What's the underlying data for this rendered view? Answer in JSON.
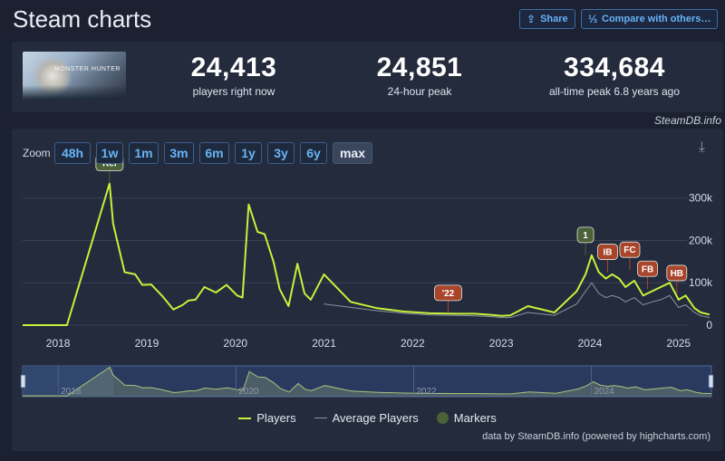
{
  "header": {
    "title": "Steam charts",
    "share_label": "Share",
    "compare_label": "Compare with others…",
    "share_icon": "share-icon",
    "compare_icon": "compare-icon"
  },
  "stats": {
    "game_image": "game-thumbnail",
    "current": {
      "value": "24,413",
      "label": "players right now"
    },
    "peak24": {
      "value": "24,851",
      "label": "24-hour peak"
    },
    "alltime": {
      "value": "334,684",
      "label": "all-time peak 6.8 years ago"
    }
  },
  "credit": "SteamDB.info",
  "zoom": {
    "label": "Zoom",
    "buttons": [
      "48h",
      "1w",
      "1m",
      "3m",
      "6m",
      "1y",
      "3y",
      "6y",
      "max"
    ],
    "active": "max"
  },
  "download_icon": "download-icon",
  "legend": {
    "players": "Players",
    "average": "Average Players",
    "markers": "Markers"
  },
  "footnote": "data by SteamDB.info (powered by highcharts.com)",
  "chart_data": {
    "type": "line",
    "xlim": [
      2017.6,
      2025.35
    ],
    "ylim": [
      0,
      340000
    ],
    "x_ticks": [
      "2018",
      "2019",
      "2020",
      "2021",
      "2022",
      "2023",
      "2024",
      "2025"
    ],
    "y_ticks": [
      {
        "value": 0,
        "label": "0"
      },
      {
        "value": 100000,
        "label": "100k"
      },
      {
        "value": 200000,
        "label": "200k"
      },
      {
        "value": 300000,
        "label": "300k"
      }
    ],
    "grid": true,
    "colors": {
      "players": "#c5f23a",
      "average": "#8c95a3",
      "marker_green": "#4b6137",
      "marker_orange": "#a8452b"
    },
    "series": [
      {
        "name": "Players",
        "x": [
          2017.6,
          2018.1,
          2018.58,
          2018.62,
          2018.75,
          2018.87,
          2018.95,
          2019.05,
          2019.17,
          2019.3,
          2019.4,
          2019.47,
          2019.55,
          2019.65,
          2019.78,
          2019.9,
          2020.02,
          2020.08,
          2020.15,
          2020.25,
          2020.33,
          2020.43,
          2020.5,
          2020.6,
          2020.7,
          2020.78,
          2020.85,
          2021.0,
          2021.3,
          2021.6,
          2021.9,
          2022.2,
          2022.5,
          2022.7,
          2022.9,
          2023.0,
          2023.1,
          2023.3,
          2023.6,
          2023.85,
          2023.95,
          2024.02,
          2024.1,
          2024.18,
          2024.25,
          2024.33,
          2024.4,
          2024.5,
          2024.6,
          2024.7,
          2024.8,
          2024.9,
          2025.0,
          2025.08,
          2025.18,
          2025.25,
          2025.35
        ],
        "values": [
          0,
          0,
          334684,
          240000,
          125000,
          120000,
          95000,
          96000,
          70000,
          37000,
          47000,
          58000,
          60000,
          90000,
          77000,
          95000,
          70000,
          65000,
          285000,
          220000,
          215000,
          150000,
          85000,
          45000,
          145000,
          75000,
          60000,
          120000,
          55000,
          40000,
          32000,
          28000,
          27000,
          27000,
          24000,
          22000,
          23000,
          45000,
          30000,
          80000,
          120000,
          165000,
          125000,
          110000,
          120000,
          110000,
          90000,
          105000,
          70000,
          80000,
          90000,
          100000,
          60000,
          70000,
          40000,
          30000,
          25000
        ]
      },
      {
        "name": "Average Players",
        "x": [
          2021.0,
          2021.3,
          2021.6,
          2021.9,
          2022.2,
          2022.5,
          2022.7,
          2022.9,
          2023.0,
          2023.1,
          2023.3,
          2023.6,
          2023.85,
          2023.95,
          2024.02,
          2024.1,
          2024.18,
          2024.25,
          2024.33,
          2024.4,
          2024.5,
          2024.6,
          2024.7,
          2024.8,
          2024.9,
          2025.0,
          2025.08,
          2025.18,
          2025.25,
          2025.35
        ],
        "values": [
          50000,
          42000,
          34000,
          28000,
          24000,
          23000,
          22000,
          20000,
          18000,
          18000,
          30000,
          23000,
          50000,
          80000,
          100000,
          75000,
          65000,
          70000,
          65000,
          55000,
          65000,
          48000,
          55000,
          60000,
          70000,
          42000,
          48000,
          30000,
          22000,
          18000
        ]
      }
    ],
    "markers": [
      {
        "label": "Rel",
        "x": 2018.58,
        "y": 334684,
        "color": "green"
      },
      {
        "label": "'22",
        "x": 2022.4,
        "y": 28000,
        "color": "orange"
      },
      {
        "label": "1",
        "x": 2023.95,
        "y": 165000,
        "color": "green"
      },
      {
        "label": "IB",
        "x": 2024.2,
        "y": 125000,
        "color": "orange"
      },
      {
        "label": "FC",
        "x": 2024.45,
        "y": 130000,
        "color": "orange"
      },
      {
        "label": "FB",
        "x": 2024.65,
        "y": 85000,
        "color": "orange"
      },
      {
        "label": "HB",
        "x": 2024.98,
        "y": 75000,
        "color": "orange"
      }
    ]
  }
}
